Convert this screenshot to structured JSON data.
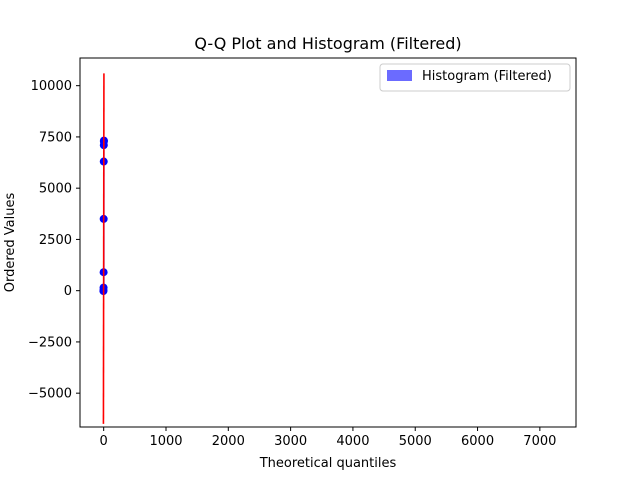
{
  "chart_data": {
    "type": "scatter",
    "title": "Q-Q Plot and Histogram (Filtered)",
    "xlabel": "Theoretical quantiles",
    "ylabel": "Ordered Values",
    "xlim": [
      -380,
      7580
    ],
    "ylim": [
      -6650,
      11350
    ],
    "xticks": [
      0,
      1000,
      2000,
      3000,
      4000,
      5000,
      6000,
      7000
    ],
    "xtick_labels": [
      "0",
      "1000",
      "2000",
      "3000",
      "4000",
      "5000",
      "6000",
      "7000"
    ],
    "yticks": [
      -5000,
      -2500,
      0,
      2500,
      5000,
      7500,
      10000
    ],
    "ytick_labels": [
      "−5000",
      "−2500",
      "0",
      "2500",
      "5000",
      "7500",
      "10000"
    ],
    "grid": false,
    "legend": {
      "placement": "top-right",
      "entries": [
        {
          "label": "Histogram (Filtered)",
          "color": "#6b6bff"
        }
      ]
    },
    "series": [
      {
        "kind": "histogram",
        "color": "#6b6bff",
        "bins": [
          {
            "x0": 0,
            "x1": 4,
            "height": 7350
          }
        ]
      },
      {
        "kind": "qq-points",
        "color": "#0000ff",
        "x": [
          -4,
          -3,
          -2,
          -1,
          0,
          1,
          2,
          3,
          4
        ],
        "y": [
          -20,
          30,
          150,
          900,
          3500,
          6300,
          7100,
          7280,
          7320
        ]
      },
      {
        "kind": "qq-line",
        "color": "#ff0000",
        "x": [
          -4,
          4
        ],
        "y": [
          -6500,
          10600
        ]
      }
    ]
  }
}
